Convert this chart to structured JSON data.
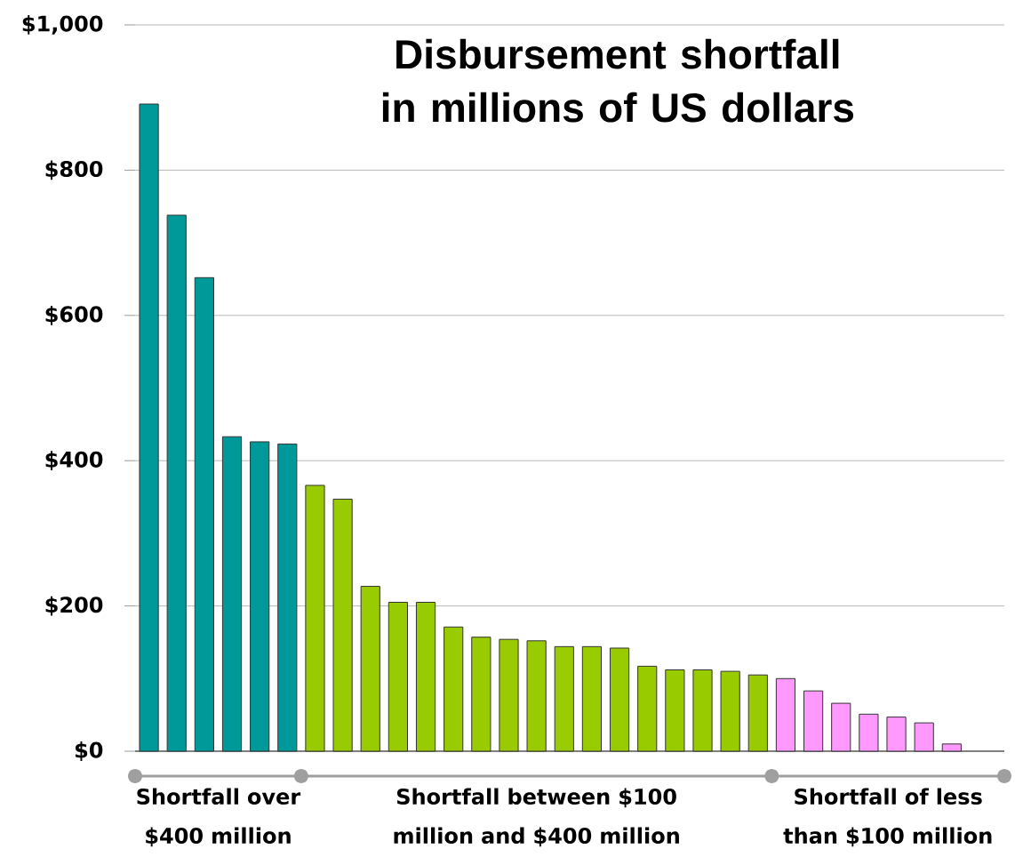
{
  "chart_data": {
    "type": "bar",
    "title": "Disbursement shortfall in millions of US dollars",
    "categories": [
      null,
      null,
      null,
      null,
      null,
      null,
      null,
      null,
      null,
      null,
      null,
      null,
      null,
      null,
      null,
      null,
      null,
      null,
      null,
      null,
      null,
      null,
      null,
      null,
      null,
      null,
      null,
      null,
      null,
      null
    ],
    "values": [
      891,
      738,
      652,
      433,
      426,
      423,
      366,
      347,
      227,
      205,
      205,
      171,
      157,
      154,
      152,
      144,
      144,
      142,
      117,
      112,
      112,
      110,
      105,
      100,
      83,
      66,
      51,
      47,
      39,
      10
    ],
    "colors": [
      "#009999",
      "#009999",
      "#009999",
      "#009999",
      "#009999",
      "#009999",
      "#99cc00",
      "#99cc00",
      "#99cc00",
      "#99cc00",
      "#99cc00",
      "#99cc00",
      "#99cc00",
      "#99cc00",
      "#99cc00",
      "#99cc00",
      "#99cc00",
      "#99cc00",
      "#99cc00",
      "#99cc00",
      "#99cc00",
      "#99cc00",
      "#99cc00",
      "#ff99ff",
      "#ff99ff",
      "#ff99ff",
      "#ff99ff",
      "#ff99ff",
      "#ff99ff",
      "#ff99ff"
    ],
    "ylim": [
      0,
      1000
    ],
    "yticks": [
      {
        "value": 0,
        "label": "$0"
      },
      {
        "value": 200,
        "label": "$200"
      },
      {
        "value": 400,
        "label": "$400"
      },
      {
        "value": 600,
        "label": "$600"
      },
      {
        "value": 800,
        "label": "$800"
      },
      {
        "value": 1000,
        "label": "$1,000"
      }
    ],
    "grid": "y",
    "annotations": [
      "Shortfall over $400 million",
      "Shortfall between $100 million and $400 million",
      "Shortfall of less than $100 million"
    ]
  }
}
